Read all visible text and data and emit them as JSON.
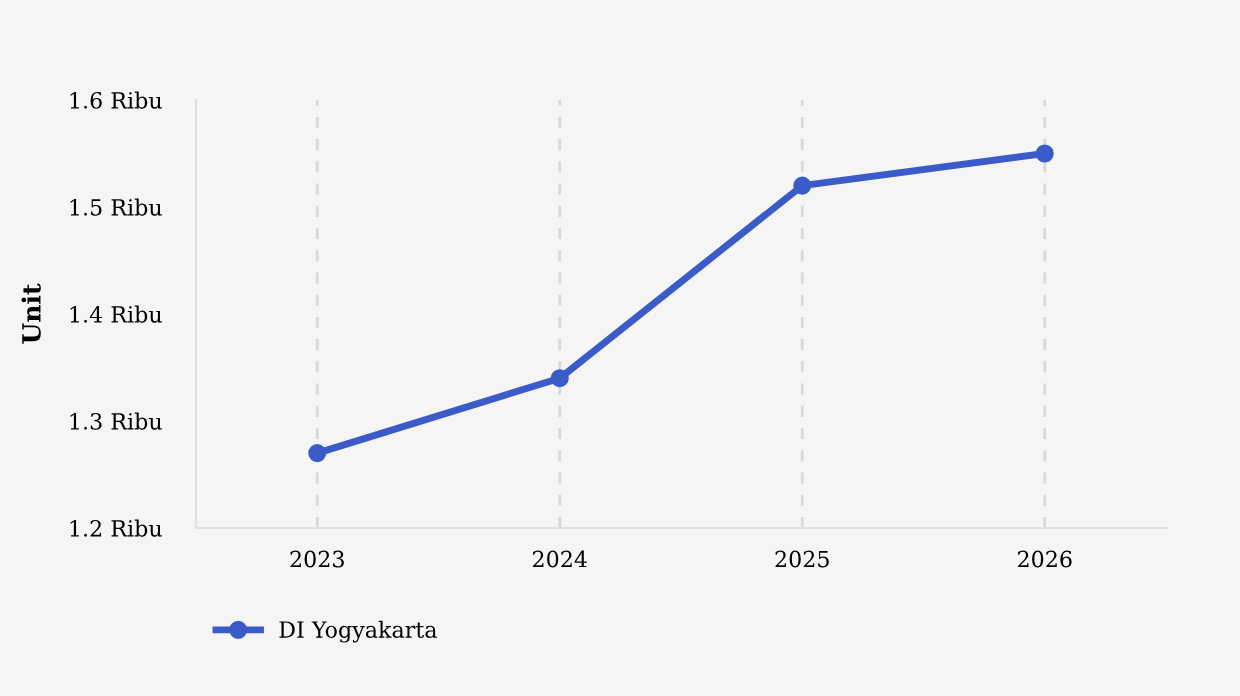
{
  "chart_data": {
    "type": "line",
    "ylabel": "Unit",
    "categories": [
      "2023",
      "2024",
      "2025",
      "2026"
    ],
    "series": [
      {
        "name": "DI Yogyakarta",
        "color": "#3b5bc8",
        "values": [
          1.27,
          1.34,
          1.52,
          1.55
        ]
      }
    ],
    "ylim": [
      1.2,
      1.6
    ],
    "yticks": [
      {
        "value": 1.2,
        "label": "1.2 Ribu"
      },
      {
        "value": 1.3,
        "label": "1.3 Ribu"
      },
      {
        "value": 1.4,
        "label": "1.4 Ribu"
      },
      {
        "value": 1.5,
        "label": "1.5 Ribu"
      },
      {
        "value": 1.6,
        "label": "1.6 Ribu"
      }
    ],
    "grid": "x",
    "legend": "bottom left",
    "marker": "circle",
    "line_style": "solid"
  }
}
